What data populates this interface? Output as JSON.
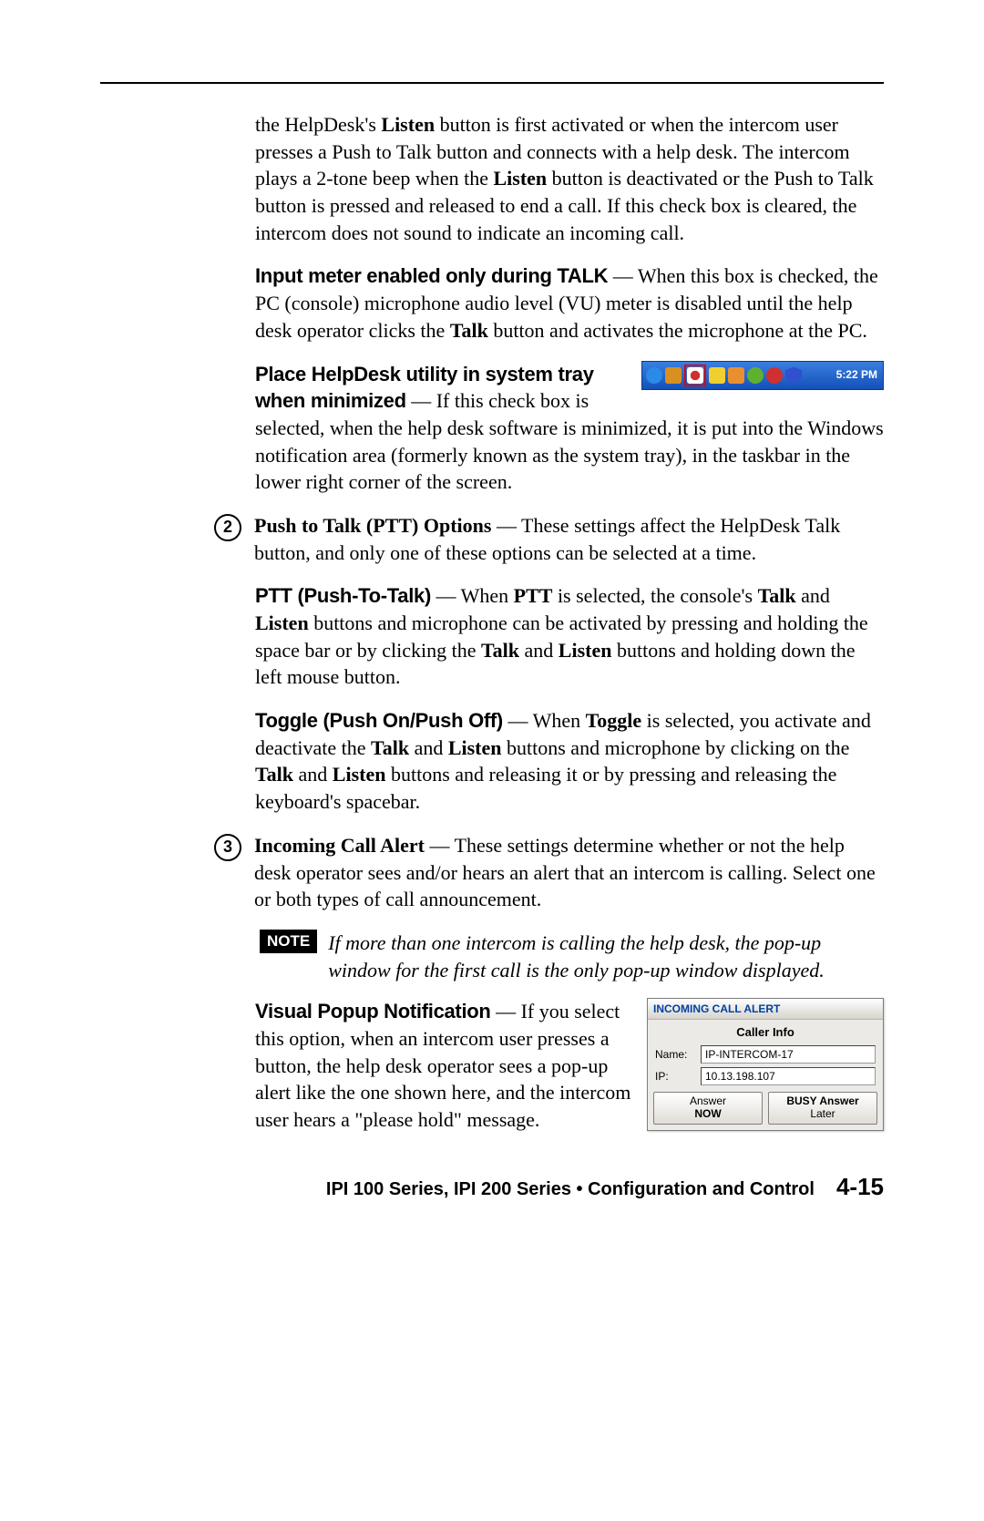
{
  "paragraphs": {
    "intro": "the HelpDesk's <b>Listen</b> button is first activated or when the intercom user presses a Push to Talk button and connects with a help desk.  The intercom plays a 2-tone beep when the <b>Listen</b> button is deactivated or the Push to Talk button is pressed and released to end a call.  If this check box is cleared, the intercom does not sound to indicate an incoming call.",
    "input_meter_label": "Input meter enabled only during TALK",
    "input_meter_text": " — When this box is checked, the PC (console) microphone audio level (VU) meter is disabled until the help desk operator clicks the <b>Talk</b> button and activates the microphone at the PC.",
    "place_label": "Place HelpDesk utility in system tray when minimized",
    "place_text": " — If this check box is selected, when the  help desk software is minimized, it is put into the Windows notification area (formerly known as the system tray), in the taskbar in the lower right corner of the screen.",
    "ptt_options": "<b>Push to Talk (PTT) Options</b> — These settings affect the HelpDesk Talk button, and only one of these options can be selected at a time.",
    "ptt_label": "PTT (Push-To-Talk)",
    "ptt_text": " — When <b>PTT</b> is selected, the console's <b>Talk</b> and <b>Listen</b> buttons and microphone can be activated by pressing and holding the space bar or by clicking the <b>Talk</b> and <b>Listen</b> buttons and holding down the left mouse button.",
    "toggle_label": "Toggle (Push On/Push Off)",
    "toggle_text": " — When <b>Toggle</b> is selected, you activate and deactivate the <b>Talk</b> and <b>Listen</b> buttons and microphone by clicking on the <b>Talk</b> and <b>Listen</b> buttons and releasing it or by pressing and releasing the keyboard's spacebar.",
    "incoming": "<b>Incoming Call Alert</b> — These settings determine whether or not the help desk operator sees and/or hears an alert that an intercom is calling.  Select one or both types of call announcement.",
    "note": "If more than one intercom is calling the help desk, the pop-up window for the first call is the only pop-up window displayed.",
    "visual_label": "Visual Popup Notification",
    "visual_text": " — If you select this option, when an  intercom user presses a button, the help desk operator sees a pop-up alert like the one shown here, and the intercom user hears a \"please hold\" message."
  },
  "systray": {
    "time": "5:22 PM",
    "icons": [
      {
        "bg": "#2a8ae8",
        "shape": "round"
      },
      {
        "bg": "#d89020",
        "shape": "sq"
      },
      {
        "bg": "#ffffff",
        "shape": "sq",
        "hl": true
      },
      {
        "bg": "#f0d030",
        "shape": "sq"
      },
      {
        "bg": "#e89030",
        "shape": "sq"
      },
      {
        "bg": "#60b030",
        "shape": "round"
      },
      {
        "bg": "#d03030",
        "shape": "round"
      },
      {
        "bg": "#3050d0",
        "shape": "shield"
      }
    ]
  },
  "alertbox": {
    "title": "INCOMING CALL ALERT",
    "caller": "Caller Info",
    "name_label": "Name:",
    "name_value": "IP-INTERCOM-17",
    "ip_label": "IP:",
    "ip_value": "10.13.198.107",
    "btn1_l1": "Answer",
    "btn1_l2": "NOW",
    "btn2_l1": "BUSY Answer",
    "btn2_l2": "Later"
  },
  "note_tag": "NOTE",
  "footer": {
    "text": "IPI 100 Series, IPI 200 Series • Configuration and Control",
    "page": "4-15"
  }
}
